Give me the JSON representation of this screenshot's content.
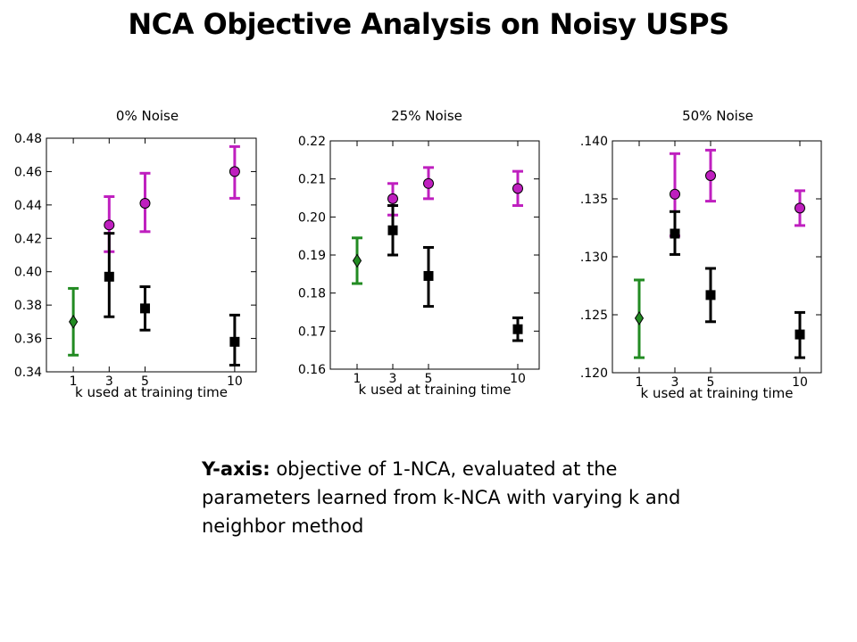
{
  "slide": {
    "title": "NCA Objective Analysis on Noisy USPS",
    "caption_bold": "Y-axis:",
    "caption_rest": " objective of 1-NCA, evaluated at the parameters learned from k-NCA with varying k and neighbor method"
  },
  "colors": {
    "green": "#228B22",
    "magenta": "#BF1FBF",
    "black": "#000000",
    "frame": "#000000"
  },
  "chart_data": [
    {
      "type": "scatter",
      "title": "0% Noise",
      "xlabel": "k used at training time",
      "ylabel": "",
      "x_ticks": [
        1,
        3,
        5,
        10
      ],
      "x_tick_labels": [
        "1",
        "3",
        "5",
        "10"
      ],
      "xlim": [
        -0.5,
        11.2
      ],
      "ylim": [
        0.34,
        0.48
      ],
      "y_ticks": [
        0.34,
        0.36,
        0.38,
        0.4,
        0.42,
        0.44,
        0.46,
        0.48
      ],
      "y_tick_labels": [
        "0.34",
        "0.36",
        "0.38",
        "0.40",
        "0.42",
        "0.44",
        "0.46",
        "0.48"
      ],
      "series": [
        {
          "marker": "diamond",
          "color": "#228B22",
          "points": [
            {
              "x": 1,
              "y": 0.37,
              "lo": 0.35,
              "hi": 0.39
            }
          ]
        },
        {
          "marker": "circle",
          "color": "#BF1FBF",
          "points": [
            {
              "x": 3,
              "y": 0.428,
              "lo": 0.412,
              "hi": 0.445
            },
            {
              "x": 5,
              "y": 0.441,
              "lo": 0.424,
              "hi": 0.459
            },
            {
              "x": 10,
              "y": 0.46,
              "lo": 0.444,
              "hi": 0.475
            }
          ]
        },
        {
          "marker": "square",
          "color": "#000000",
          "points": [
            {
              "x": 3,
              "y": 0.397,
              "lo": 0.373,
              "hi": 0.423
            },
            {
              "x": 5,
              "y": 0.378,
              "lo": 0.365,
              "hi": 0.391
            },
            {
              "x": 10,
              "y": 0.358,
              "lo": 0.344,
              "hi": 0.374
            }
          ]
        }
      ]
    },
    {
      "type": "scatter",
      "title": "25% Noise",
      "xlabel": "k used at training time",
      "ylabel": "",
      "x_ticks": [
        1,
        3,
        5,
        10
      ],
      "x_tick_labels": [
        "1",
        "3",
        "5",
        "10"
      ],
      "xlim": [
        -0.5,
        11.2
      ],
      "ylim": [
        0.16,
        0.22
      ],
      "y_ticks": [
        0.16,
        0.17,
        0.18,
        0.19,
        0.2,
        0.21,
        0.22
      ],
      "y_tick_labels": [
        "0.16",
        "0.17",
        "0.18",
        "0.19",
        "0.20",
        "0.21",
        "0.22"
      ],
      "series": [
        {
          "marker": "diamond",
          "color": "#228B22",
          "points": [
            {
              "x": 1,
              "y": 0.1885,
              "lo": 0.1825,
              "hi": 0.1945
            }
          ]
        },
        {
          "marker": "circle",
          "color": "#BF1FBF",
          "points": [
            {
              "x": 3,
              "y": 0.2048,
              "lo": 0.2005,
              "hi": 0.2088
            },
            {
              "x": 5,
              "y": 0.2088,
              "lo": 0.2048,
              "hi": 0.213
            },
            {
              "x": 10,
              "y": 0.2075,
              "lo": 0.203,
              "hi": 0.212
            }
          ]
        },
        {
          "marker": "square",
          "color": "#000000",
          "points": [
            {
              "x": 3,
              "y": 0.1965,
              "lo": 0.19,
              "hi": 0.203
            },
            {
              "x": 5,
              "y": 0.1845,
              "lo": 0.1765,
              "hi": 0.192
            },
            {
              "x": 10,
              "y": 0.1705,
              "lo": 0.1675,
              "hi": 0.1735
            }
          ]
        }
      ]
    },
    {
      "type": "scatter",
      "title": "50% Noise",
      "xlabel": "k used at training time",
      "ylabel": "",
      "x_ticks": [
        1,
        3,
        5,
        10
      ],
      "x_tick_labels": [
        "1",
        "3",
        "5",
        "10"
      ],
      "xlim": [
        -0.5,
        11.2
      ],
      "ylim": [
        0.12,
        0.14
      ],
      "y_ticks": [
        0.12,
        0.125,
        0.13,
        0.135,
        0.14
      ],
      "y_tick_labels": [
        ".120",
        ".125",
        ".130",
        ".135",
        ".140"
      ],
      "series": [
        {
          "marker": "diamond",
          "color": "#228B22",
          "points": [
            {
              "x": 1,
              "y": 0.1247,
              "lo": 0.1213,
              "hi": 0.128
            }
          ]
        },
        {
          "marker": "circle",
          "color": "#BF1FBF",
          "points": [
            {
              "x": 3,
              "y": 0.1354,
              "lo": 0.1318,
              "hi": 0.1389
            },
            {
              "x": 5,
              "y": 0.137,
              "lo": 0.1348,
              "hi": 0.1392
            },
            {
              "x": 10,
              "y": 0.1342,
              "lo": 0.1327,
              "hi": 0.1357
            }
          ]
        },
        {
          "marker": "square",
          "color": "#000000",
          "points": [
            {
              "x": 3,
              "y": 0.132,
              "lo": 0.1302,
              "hi": 0.1339
            },
            {
              "x": 5,
              "y": 0.1267,
              "lo": 0.1244,
              "hi": 0.129
            },
            {
              "x": 10,
              "y": 0.1233,
              "lo": 0.1213,
              "hi": 0.1252
            }
          ]
        }
      ]
    }
  ]
}
